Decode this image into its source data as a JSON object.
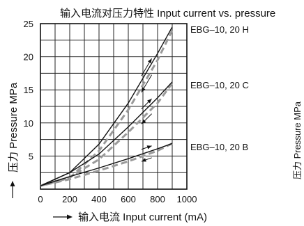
{
  "chart_data": {
    "type": "line",
    "title": "输入电流对压力特性  Input current vs. pressure",
    "xlabel": "输入电流  Input current (mA)",
    "ylabel": "压力 Pressure MPa",
    "xlim": [
      0,
      1000
    ],
    "ylim": [
      0,
      25
    ],
    "x_ticks": [
      "0",
      "200",
      "400",
      "600",
      "800",
      "1000"
    ],
    "y_ticks": [
      "5",
      "10",
      "15",
      "20",
      "25"
    ],
    "grid": true,
    "series": [
      {
        "name": "EBG–10, 20 H",
        "increasing": [
          [
            0,
            0.5
          ],
          [
            200,
            2.5
          ],
          [
            400,
            6.8
          ],
          [
            600,
            13.0
          ],
          [
            800,
            20.5
          ],
          [
            900,
            24.5
          ]
        ],
        "decreasing": [
          [
            900,
            24.0
          ],
          [
            800,
            19.5
          ],
          [
            600,
            12.0
          ],
          [
            400,
            5.8
          ],
          [
            200,
            1.7
          ],
          [
            0,
            0.5
          ]
        ]
      },
      {
        "name": "EBG–10, 20 C",
        "increasing": [
          [
            0,
            0.5
          ],
          [
            200,
            2.5
          ],
          [
            400,
            5.3
          ],
          [
            600,
            9.4
          ],
          [
            800,
            13.8
          ],
          [
            900,
            16.2
          ]
        ],
        "decreasing": [
          [
            900,
            16.0
          ],
          [
            800,
            13.0
          ],
          [
            600,
            8.6
          ],
          [
            400,
            4.5
          ],
          [
            200,
            1.8
          ],
          [
            0,
            0.5
          ]
        ]
      },
      {
        "name": "EBG–10, 20 B",
        "increasing": [
          [
            0,
            0.5
          ],
          [
            200,
            1.9
          ],
          [
            400,
            3.2
          ],
          [
            600,
            4.6
          ],
          [
            800,
            6.1
          ],
          [
            900,
            6.9
          ]
        ],
        "decreasing": [
          [
            900,
            6.9
          ],
          [
            800,
            5.8
          ],
          [
            600,
            4.2
          ],
          [
            400,
            2.8
          ],
          [
            200,
            1.5
          ],
          [
            0,
            0.5
          ]
        ]
      }
    ]
  },
  "right_edge_label": "压力 Pressure MPa"
}
